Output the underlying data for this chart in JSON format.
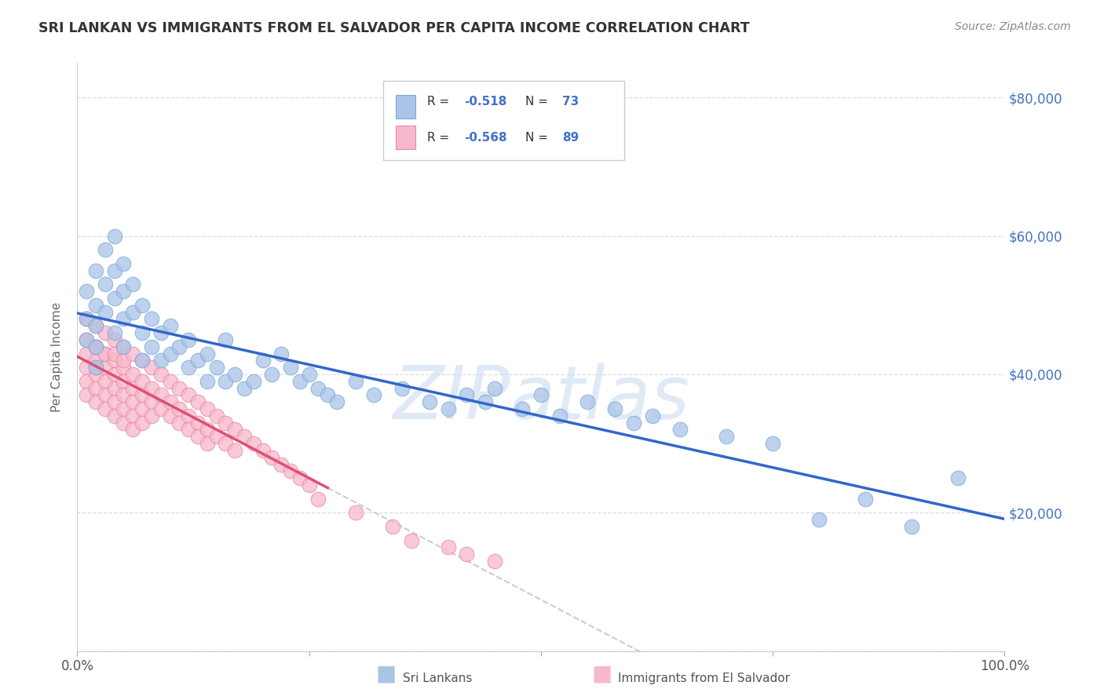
{
  "title": "SRI LANKAN VS IMMIGRANTS FROM EL SALVADOR PER CAPITA INCOME CORRELATION CHART",
  "source": "Source: ZipAtlas.com",
  "ylabel": "Per Capita Income",
  "y_ticks": [
    0,
    20000,
    40000,
    60000,
    80000
  ],
  "y_tick_labels": [
    "",
    "$20,000",
    "$40,000",
    "$60,000",
    "$80,000"
  ],
  "xlim": [
    0,
    100
  ],
  "ylim": [
    0,
    85000
  ],
  "sri_lankans": {
    "name": "Sri Lankans",
    "color": "#aac4e8",
    "edge_color": "#7aaad8",
    "trend_color": "#3366cc",
    "R": -0.518,
    "N": 73,
    "x": [
      1,
      1,
      1,
      2,
      2,
      2,
      2,
      2,
      3,
      3,
      3,
      4,
      4,
      4,
      4,
      5,
      5,
      5,
      5,
      6,
      6,
      7,
      7,
      7,
      8,
      8,
      9,
      9,
      10,
      10,
      11,
      12,
      12,
      13,
      14,
      14,
      15,
      16,
      16,
      17,
      18,
      19,
      20,
      21,
      22,
      23,
      24,
      25,
      26,
      27,
      28,
      30,
      32,
      35,
      38,
      40,
      42,
      44,
      45,
      48,
      50,
      52,
      55,
      58,
      60,
      62,
      65,
      70,
      75,
      80,
      85,
      90,
      95
    ],
    "y": [
      52000,
      48000,
      45000,
      55000,
      50000,
      47000,
      44000,
      41000,
      58000,
      53000,
      49000,
      60000,
      55000,
      51000,
      46000,
      56000,
      52000,
      48000,
      44000,
      53000,
      49000,
      50000,
      46000,
      42000,
      48000,
      44000,
      46000,
      42000,
      47000,
      43000,
      44000,
      45000,
      41000,
      42000,
      43000,
      39000,
      41000,
      45000,
      39000,
      40000,
      38000,
      39000,
      42000,
      40000,
      43000,
      41000,
      39000,
      40000,
      38000,
      37000,
      36000,
      39000,
      37000,
      38000,
      36000,
      35000,
      37000,
      36000,
      38000,
      35000,
      37000,
      34000,
      36000,
      35000,
      33000,
      34000,
      32000,
      31000,
      30000,
      19000,
      22000,
      18000,
      25000
    ]
  },
  "el_salvador": {
    "name": "Immigrants from El Salvador",
    "color": "#f8b8cc",
    "edge_color": "#e888a8",
    "trend_color": "#e05070",
    "R": -0.568,
    "N": 89,
    "x": [
      1,
      1,
      1,
      1,
      1,
      1,
      2,
      2,
      2,
      2,
      2,
      2,
      2,
      2,
      3,
      3,
      3,
      3,
      3,
      3,
      3,
      4,
      4,
      4,
      4,
      4,
      4,
      4,
      5,
      5,
      5,
      5,
      5,
      5,
      5,
      6,
      6,
      6,
      6,
      6,
      6,
      7,
      7,
      7,
      7,
      7,
      8,
      8,
      8,
      8,
      9,
      9,
      9,
      10,
      10,
      10,
      11,
      11,
      11,
      12,
      12,
      12,
      13,
      13,
      13,
      14,
      14,
      14,
      15,
      15,
      16,
      16,
      17,
      17,
      18,
      19,
      20,
      21,
      22,
      23,
      24,
      25,
      26,
      30,
      34,
      36,
      40,
      42,
      45
    ],
    "y": [
      48000,
      45000,
      43000,
      41000,
      39000,
      37000,
      47000,
      44000,
      42000,
      40000,
      38000,
      36000,
      44000,
      41000,
      46000,
      43000,
      41000,
      39000,
      37000,
      35000,
      43000,
      45000,
      42000,
      40000,
      38000,
      36000,
      34000,
      43000,
      44000,
      41000,
      39000,
      37000,
      35000,
      33000,
      42000,
      43000,
      40000,
      38000,
      36000,
      34000,
      32000,
      42000,
      39000,
      37000,
      35000,
      33000,
      41000,
      38000,
      36000,
      34000,
      40000,
      37000,
      35000,
      39000,
      36000,
      34000,
      38000,
      35000,
      33000,
      37000,
      34000,
      32000,
      36000,
      33000,
      31000,
      35000,
      32000,
      30000,
      34000,
      31000,
      33000,
      30000,
      32000,
      29000,
      31000,
      30000,
      29000,
      28000,
      27000,
      26000,
      25000,
      24000,
      22000,
      20000,
      18000,
      16000,
      15000,
      14000,
      13000
    ]
  },
  "watermark": "ZIPatlas",
  "background_color": "#ffffff",
  "grid_color": "#ddddee",
  "title_color": "#333333",
  "right_axis_color": "#4472c4",
  "source_color": "#888888"
}
